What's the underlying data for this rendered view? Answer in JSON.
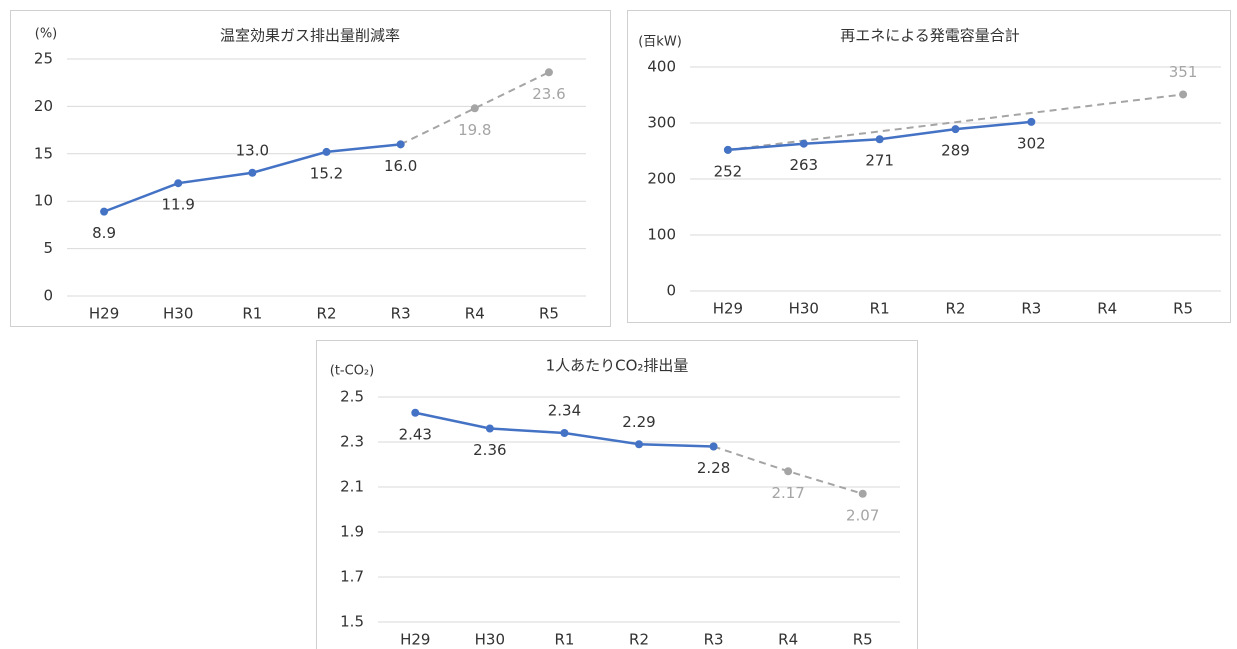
{
  "chart_data": [
    {
      "type": "line",
      "title": "温室効果ガス排出量削減率",
      "y_label": "(%)",
      "categories": [
        "H29",
        "H30",
        "R1",
        "R2",
        "R3",
        "R4",
        "R5"
      ],
      "ylim": [
        0,
        25
      ],
      "yticks": [
        0,
        5,
        10,
        15,
        20,
        25
      ],
      "grid": true,
      "series": [
        {
          "color": "#4472c4",
          "dashed": false,
          "values": [
            8.9,
            11.9,
            13.0,
            15.2,
            16.0,
            null,
            null
          ],
          "value_labels": [
            "8.9",
            "11.9",
            "13.0",
            "15.2",
            "16.0",
            null,
            null
          ]
        },
        {
          "color": "#a5a5a5",
          "dashed": true,
          "values": [
            null,
            null,
            null,
            null,
            16.0,
            19.8,
            23.6
          ],
          "value_labels": [
            null,
            null,
            null,
            null,
            null,
            "19.8",
            "23.6"
          ]
        }
      ]
    },
    {
      "type": "line",
      "title": "再エネによる発電容量合計",
      "y_label": "(百kW)",
      "categories": [
        "H29",
        "H30",
        "R1",
        "R2",
        "R3",
        "R4",
        "R5"
      ],
      "ylim": [
        0,
        400
      ],
      "yticks": [
        0,
        100,
        200,
        300,
        400
      ],
      "grid": true,
      "series": [
        {
          "color": "#4472c4",
          "dashed": false,
          "values": [
            252,
            263,
            271,
            289,
            302,
            null,
            null
          ],
          "value_labels": [
            "252",
            "263",
            "271",
            "289",
            "302",
            null,
            null
          ]
        },
        {
          "color": "#a5a5a5",
          "dashed": true,
          "connect_gaps": true,
          "values": [
            252,
            null,
            null,
            null,
            null,
            null,
            351
          ],
          "value_labels": [
            null,
            null,
            null,
            null,
            null,
            null,
            "351"
          ]
        }
      ]
    },
    {
      "type": "line",
      "title": "1人あたりCO₂排出量",
      "y_label": "(t-CO₂)",
      "categories": [
        "H29",
        "H30",
        "R1",
        "R2",
        "R3",
        "R4",
        "R5"
      ],
      "ylim": [
        1.5,
        2.5
      ],
      "yticks": [
        1.5,
        1.7,
        1.9,
        2.1,
        2.3,
        2.5
      ],
      "grid": true,
      "series": [
        {
          "color": "#4472c4",
          "dashed": false,
          "values": [
            2.43,
            2.36,
            2.34,
            2.29,
            2.28,
            null,
            null
          ],
          "value_labels": [
            "2.43",
            "2.36",
            "2.34",
            "2.29",
            "2.28",
            null,
            null
          ]
        },
        {
          "color": "#a5a5a5",
          "dashed": true,
          "values": [
            null,
            null,
            null,
            null,
            2.28,
            2.17,
            2.07
          ],
          "value_labels": [
            null,
            null,
            null,
            null,
            null,
            "2.17",
            "2.07"
          ]
        }
      ]
    }
  ]
}
